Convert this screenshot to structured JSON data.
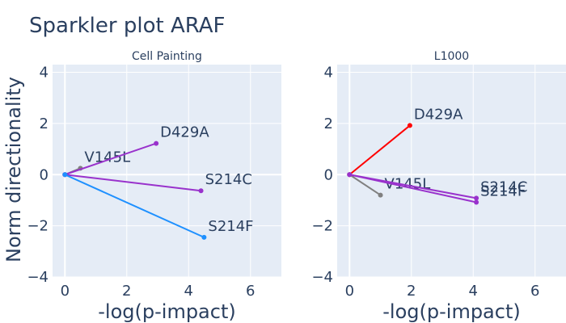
{
  "title": "Sparkler plot ARAF",
  "y_axis_title": "Norm directionality",
  "colors": {
    "plot_bg": "#e5ecf6",
    "grid": "#ffffff",
    "text": "#2a3f5f",
    "purple": "#9932cc",
    "blue": "#1e90ff",
    "gray": "#808080",
    "red": "#ff0000"
  },
  "chart_data": [
    {
      "type": "line",
      "title": "Cell Painting",
      "xlabel": "-log(p-impact)",
      "ylabel": "Norm directionality",
      "xlim": [
        -0.4,
        7.0
      ],
      "ylim": [
        -4.0,
        4.3
      ],
      "xticks": [
        0,
        2,
        4,
        6
      ],
      "yticks": [
        4,
        2,
        0,
        -2,
        -4
      ],
      "grid": true,
      "series": [
        {
          "label": "V145L",
          "color": "#808080",
          "x": [
            0,
            0.5
          ],
          "y": [
            0,
            0.25
          ]
        },
        {
          "label": "D429A",
          "color": "#9932cc",
          "x": [
            0,
            2.95
          ],
          "y": [
            0,
            1.22
          ]
        },
        {
          "label": "S214C",
          "color": "#9932cc",
          "x": [
            0,
            4.4
          ],
          "y": [
            0,
            -0.63
          ]
        },
        {
          "label": "S214F",
          "color": "#1e90ff",
          "x": [
            0,
            4.5
          ],
          "y": [
            0,
            -2.45
          ]
        }
      ]
    },
    {
      "type": "line",
      "title": "L1000",
      "xlabel": "-log(p-impact)",
      "ylabel": "",
      "xlim": [
        -0.4,
        7.0
      ],
      "ylim": [
        -4.0,
        4.3
      ],
      "xticks": [
        0,
        2,
        4,
        6
      ],
      "yticks": [
        4,
        2,
        0,
        -2,
        -4
      ],
      "grid": true,
      "series": [
        {
          "label": "D429A",
          "color": "#ff0000",
          "x": [
            0,
            1.95
          ],
          "y": [
            0,
            1.92
          ]
        },
        {
          "label": "V145L",
          "color": "#808080",
          "x": [
            0,
            1.0
          ],
          "y": [
            0,
            -0.8
          ]
        },
        {
          "label": "S214C",
          "color": "#9932cc",
          "x": [
            0,
            4.1
          ],
          "y": [
            0,
            -0.92
          ]
        },
        {
          "label": "S214F",
          "color": "#9932cc",
          "x": [
            0,
            4.1
          ],
          "y": [
            0,
            -1.08
          ]
        }
      ]
    }
  ]
}
